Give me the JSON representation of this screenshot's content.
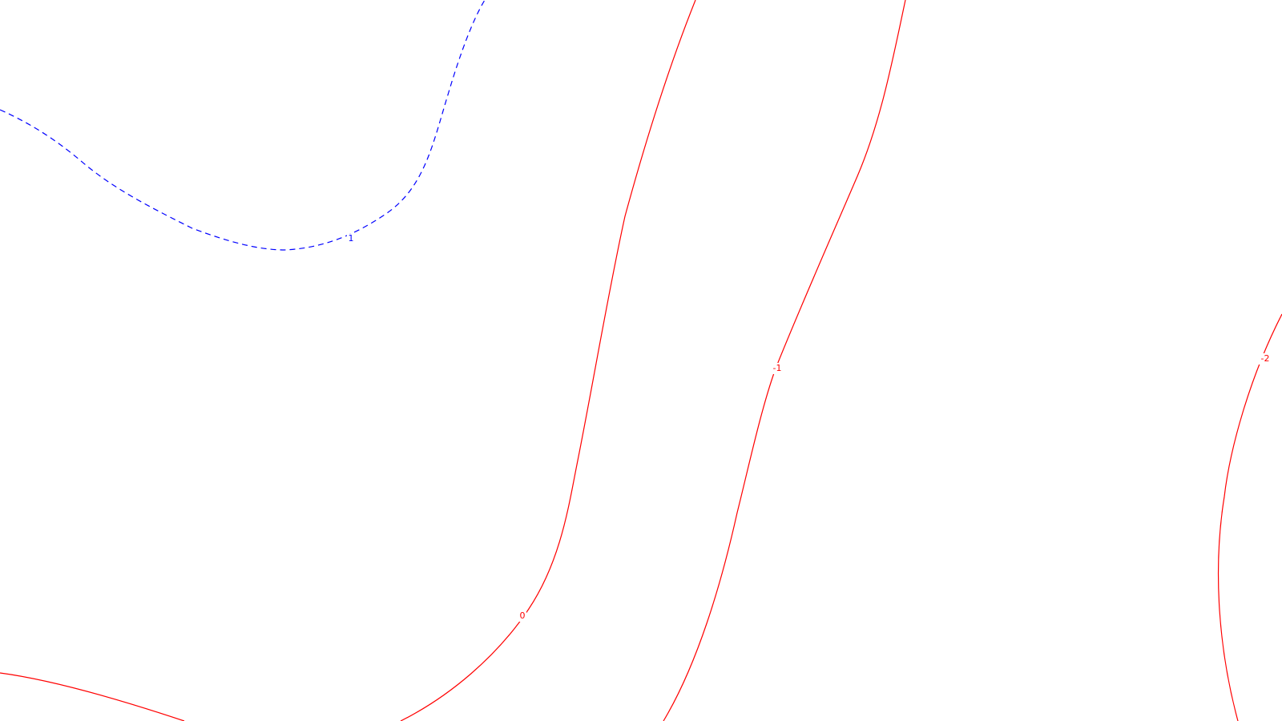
{
  "map": {
    "background": "#ffffff",
    "contours": [
      {
        "id": "contour-1-dashed",
        "label": "1",
        "color": "#0000ff",
        "style": "dashed"
      },
      {
        "id": "contour-0-left",
        "label": "",
        "color": "#ff0000",
        "style": "solid"
      },
      {
        "id": "contour-0",
        "label": "0",
        "color": "#ff0000",
        "style": "solid"
      },
      {
        "id": "contour-neg1",
        "label": "-1",
        "color": "#ff0000",
        "style": "solid"
      },
      {
        "id": "contour-neg2",
        "label": "-2",
        "color": "#ff0000",
        "style": "solid"
      }
    ]
  }
}
